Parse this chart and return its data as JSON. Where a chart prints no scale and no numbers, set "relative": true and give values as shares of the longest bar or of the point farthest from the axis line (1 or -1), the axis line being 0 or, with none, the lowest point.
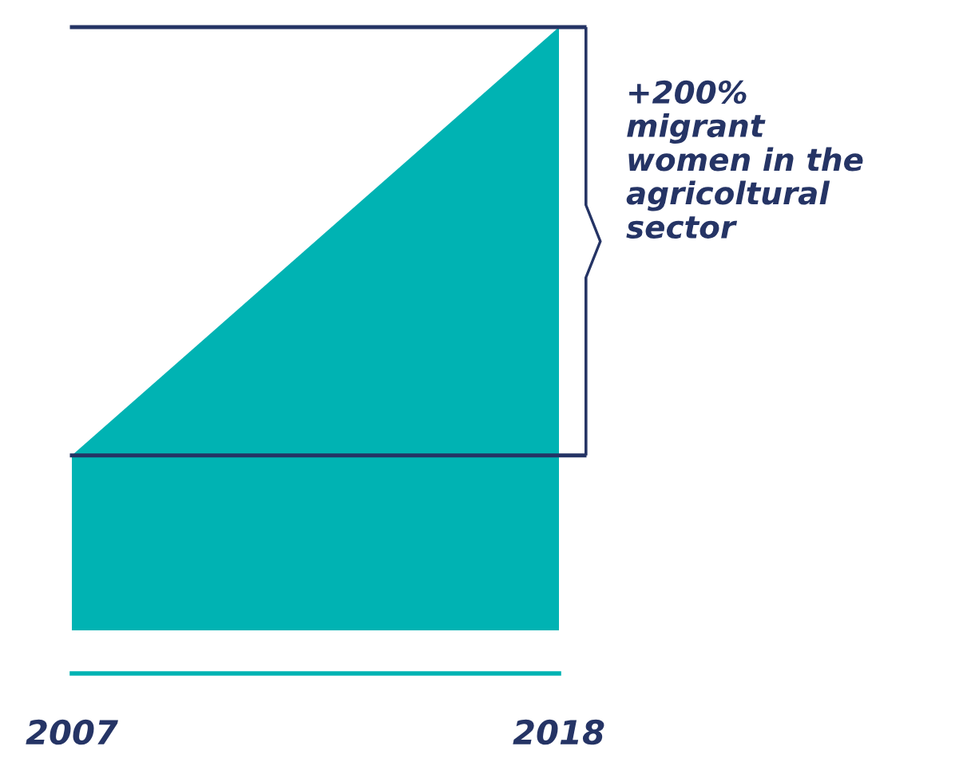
{
  "chart_data": {
    "type": "area",
    "relative": true,
    "categories": [
      "2007",
      "2018"
    ],
    "series": [
      {
        "color": "#00b3b3",
        "values": [
          0.29,
          1
        ]
      }
    ],
    "annotations": [
      "+200%\nmigrant\nwomen in the\nagricoltural\nsector"
    ],
    "ref_lines": [
      {
        "axis": "y",
        "value": 0.29,
        "color": "#253465"
      },
      {
        "axis": "y",
        "value": 1,
        "color": "#253465"
      }
    ],
    "grid": false,
    "legend": false
  }
}
